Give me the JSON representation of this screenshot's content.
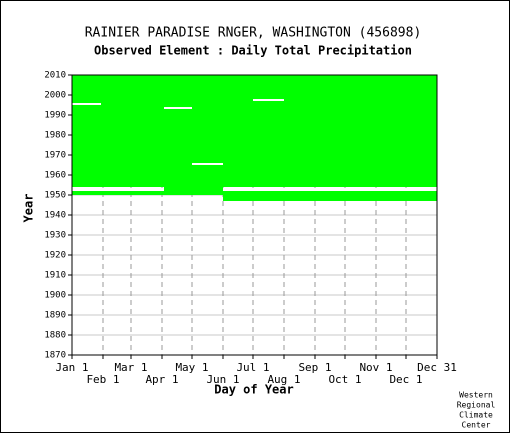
{
  "chart_data": {
    "type": "coverage",
    "title": "RAINIER PARADISE RNGER, WASHINGTON   (456898)",
    "subtitle": "Observed Element : Daily Total Precipitation",
    "xlabel": "Day of Year",
    "ylabel": "Year",
    "credit": [
      "Western",
      "Regional",
      "Climate",
      "Center"
    ],
    "color": "#00ff00",
    "gap_color": "#ffffff",
    "xlim": [
      1,
      366
    ],
    "ylim": [
      1870,
      2010
    ],
    "xticks": [
      {
        "value": 1,
        "label": "Jan 1"
      },
      {
        "value": 32,
        "label": "Feb 1"
      },
      {
        "value": 60,
        "label": "Mar 1"
      },
      {
        "value": 91,
        "label": "Apr 1"
      },
      {
        "value": 121,
        "label": "May 1"
      },
      {
        "value": 152,
        "label": "Jun 1"
      },
      {
        "value": 182,
        "label": "Jul 1"
      },
      {
        "value": 213,
        "label": "Aug 1"
      },
      {
        "value": 244,
        "label": "Sep 1"
      },
      {
        "value": 274,
        "label": "Oct 1"
      },
      {
        "value": 305,
        "label": "Nov 1"
      },
      {
        "value": 335,
        "label": "Dec 1"
      },
      {
        "value": 366,
        "label": "Dec 31"
      }
    ],
    "yticks": [
      1870,
      1880,
      1890,
      1900,
      1910,
      1920,
      1930,
      1940,
      1950,
      1960,
      1970,
      1980,
      1990,
      2000,
      2010
    ],
    "blocks": [
      {
        "days": [
          1,
          366
        ],
        "years": [
          1954,
          2010
        ]
      },
      {
        "days": [
          1,
          366
        ],
        "years": [
          1950,
          1952
        ]
      },
      {
        "days": [
          152,
          366
        ],
        "years": [
          1947,
          1950
        ]
      },
      {
        "days": [
          93,
          152
        ],
        "years": [
          1952,
          1954
        ]
      }
    ],
    "gaps": [
      {
        "days": [
          1,
          30
        ],
        "years": [
          1995,
          1996
        ]
      },
      {
        "days": [
          93,
          121
        ],
        "years": [
          1993,
          1994
        ]
      },
      {
        "days": [
          121,
          152
        ],
        "years": [
          1965,
          1966
        ]
      },
      {
        "days": [
          182,
          213
        ],
        "years": [
          1997,
          1998
        ]
      }
    ]
  }
}
